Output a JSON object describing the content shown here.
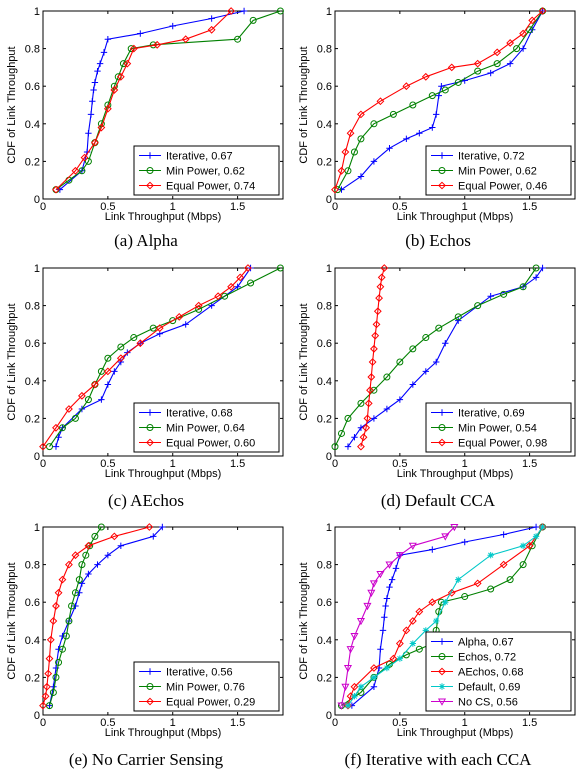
{
  "figure": {
    "captions": [
      "(a) Alpha",
      "(b) Echos",
      "(c) AEchos",
      "(d) Default CCA",
      "(e) No Carrier Sensing",
      "(f) Iterative with each CCA"
    ]
  },
  "chart_data": [
    {
      "type": "line",
      "panel": "a",
      "xlabel": "Link Throughput (Mbps)",
      "ylabel": "CDF of Link Throughput",
      "xlim": [
        0,
        1.85
      ],
      "ylim": [
        0,
        1
      ],
      "xticks": [
        0,
        0.5,
        1,
        1.5
      ],
      "xtick_labels": [
        "0",
        "0.5",
        "1",
        "1.5"
      ],
      "yticks": [
        0,
        0.2,
        0.4,
        0.6,
        0.8,
        1
      ],
      "ytick_labels": [
        "0",
        "0.2",
        "0.4",
        "0.6",
        "0.8",
        "1"
      ],
      "legend_position": "bottom-right",
      "series": [
        {
          "name": "Iterative, 0.67",
          "color": "#0000ff",
          "marker": "plus",
          "x": [
            0.13,
            0.3,
            0.34,
            0.35,
            0.37,
            0.38,
            0.39,
            0.4,
            0.42,
            0.44,
            0.47,
            0.5,
            0.75,
            1.0,
            1.3,
            1.55
          ],
          "y": [
            0.05,
            0.15,
            0.25,
            0.35,
            0.45,
            0.52,
            0.58,
            0.62,
            0.68,
            0.72,
            0.78,
            0.85,
            0.88,
            0.92,
            0.96,
            1.0
          ]
        },
        {
          "name": "Min Power, 0.62",
          "color": "#008000",
          "marker": "circle",
          "x": [
            0.1,
            0.2,
            0.3,
            0.35,
            0.4,
            0.45,
            0.5,
            0.55,
            0.58,
            0.62,
            0.68,
            0.85,
            1.5,
            1.62,
            1.83
          ],
          "y": [
            0.05,
            0.1,
            0.15,
            0.2,
            0.3,
            0.4,
            0.5,
            0.6,
            0.65,
            0.72,
            0.8,
            0.82,
            0.85,
            0.95,
            1.0
          ]
        },
        {
          "name": "Equal Power, 0.74",
          "color": "#ff0000",
          "marker": "diamond",
          "x": [
            0.1,
            0.25,
            0.32,
            0.4,
            0.45,
            0.5,
            0.55,
            0.6,
            0.65,
            0.7,
            0.88,
            1.1,
            1.3,
            1.45
          ],
          "y": [
            0.05,
            0.15,
            0.22,
            0.3,
            0.38,
            0.48,
            0.58,
            0.65,
            0.72,
            0.8,
            0.82,
            0.85,
            0.9,
            1.0
          ]
        }
      ]
    },
    {
      "type": "line",
      "panel": "b",
      "xlabel": "Link Throughput (Mbps)",
      "ylabel": "CDF of Link Throughput",
      "xlim": [
        0,
        1.85
      ],
      "ylim": [
        0,
        1
      ],
      "xticks": [
        0,
        0.5,
        1,
        1.5
      ],
      "xtick_labels": [
        "0",
        "0.5",
        "1",
        "1.5"
      ],
      "yticks": [
        0,
        0.2,
        0.4,
        0.6,
        0.8,
        1
      ],
      "ytick_labels": [
        "0",
        "0.2",
        "0.4",
        "0.6",
        "0.8",
        "1"
      ],
      "legend_position": "bottom-right",
      "series": [
        {
          "name": "Iterative, 0.72",
          "color": "#0000ff",
          "marker": "plus",
          "x": [
            0.05,
            0.2,
            0.3,
            0.42,
            0.55,
            0.65,
            0.75,
            0.78,
            0.8,
            0.82,
            1.0,
            1.2,
            1.35,
            1.45,
            1.52,
            1.6
          ],
          "y": [
            0.05,
            0.12,
            0.2,
            0.27,
            0.32,
            0.35,
            0.38,
            0.45,
            0.55,
            0.6,
            0.63,
            0.67,
            0.72,
            0.8,
            0.9,
            1.0
          ]
        },
        {
          "name": "Min Power, 0.62",
          "color": "#008000",
          "marker": "circle",
          "x": [
            0.02,
            0.1,
            0.15,
            0.2,
            0.3,
            0.45,
            0.6,
            0.75,
            0.85,
            0.95,
            1.1,
            1.25,
            1.4,
            1.5,
            1.6
          ],
          "y": [
            0.05,
            0.15,
            0.25,
            0.32,
            0.4,
            0.45,
            0.5,
            0.55,
            0.58,
            0.62,
            0.68,
            0.72,
            0.8,
            0.9,
            1.0
          ]
        },
        {
          "name": "Equal Power, 0.46",
          "color": "#ff0000",
          "marker": "diamond",
          "x": [
            0.0,
            0.05,
            0.08,
            0.12,
            0.2,
            0.35,
            0.55,
            0.7,
            0.9,
            1.1,
            1.25,
            1.35,
            1.45,
            1.52,
            1.6
          ],
          "y": [
            0.05,
            0.15,
            0.25,
            0.35,
            0.45,
            0.52,
            0.6,
            0.65,
            0.7,
            0.72,
            0.78,
            0.83,
            0.88,
            0.95,
            1.0
          ]
        }
      ]
    },
    {
      "type": "line",
      "panel": "c",
      "xlabel": "Link Throughput (Mbps)",
      "ylabel": "CDF of Link Throughput",
      "xlim": [
        0,
        1.85
      ],
      "ylim": [
        0,
        1
      ],
      "xticks": [
        0,
        0.5,
        1,
        1.5
      ],
      "xtick_labels": [
        "0",
        "0.5",
        "1",
        "1.5"
      ],
      "yticks": [
        0,
        0.2,
        0.4,
        0.6,
        0.8,
        1
      ],
      "ytick_labels": [
        "0",
        "0.2",
        "0.4",
        "0.6",
        "0.8",
        "1"
      ],
      "legend_position": "bottom-right",
      "series": [
        {
          "name": "Iterative, 0.68",
          "color": "#0000ff",
          "marker": "plus",
          "x": [
            0.1,
            0.12,
            0.15,
            0.3,
            0.45,
            0.5,
            0.55,
            0.6,
            0.65,
            0.75,
            0.9,
            1.1,
            1.3,
            1.5,
            1.6
          ],
          "y": [
            0.05,
            0.1,
            0.15,
            0.25,
            0.3,
            0.38,
            0.45,
            0.5,
            0.55,
            0.6,
            0.65,
            0.7,
            0.8,
            0.9,
            1.0
          ]
        },
        {
          "name": "Min Power, 0.64",
          "color": "#008000",
          "marker": "circle",
          "x": [
            0.05,
            0.15,
            0.25,
            0.35,
            0.4,
            0.45,
            0.5,
            0.6,
            0.7,
            0.85,
            1.0,
            1.2,
            1.4,
            1.6,
            1.83
          ],
          "y": [
            0.05,
            0.15,
            0.2,
            0.3,
            0.38,
            0.45,
            0.52,
            0.58,
            0.63,
            0.68,
            0.72,
            0.78,
            0.85,
            0.92,
            1.0
          ]
        },
        {
          "name": "Equal Power, 0.60",
          "color": "#ff0000",
          "marker": "diamond",
          "x": [
            0.0,
            0.1,
            0.2,
            0.3,
            0.4,
            0.5,
            0.6,
            0.75,
            0.9,
            1.05,
            1.2,
            1.35,
            1.45,
            1.52,
            1.58
          ],
          "y": [
            0.05,
            0.15,
            0.25,
            0.32,
            0.38,
            0.45,
            0.52,
            0.6,
            0.68,
            0.74,
            0.8,
            0.85,
            0.9,
            0.95,
            1.0
          ]
        }
      ]
    },
    {
      "type": "line",
      "panel": "d",
      "xlabel": "Link Throughput (Mbps)",
      "ylabel": "CDF of Link Throughput",
      "xlim": [
        0,
        1.85
      ],
      "ylim": [
        0,
        1
      ],
      "xticks": [
        0,
        0.5,
        1,
        1.5
      ],
      "xtick_labels": [
        "0",
        "0.5",
        "1",
        "1.5"
      ],
      "yticks": [
        0,
        0.2,
        0.4,
        0.6,
        0.8,
        1
      ],
      "ytick_labels": [
        "0",
        "0.2",
        "0.4",
        "0.6",
        "0.8",
        "1"
      ],
      "legend_position": "bottom-right",
      "series": [
        {
          "name": "Iterative, 0.69",
          "color": "#0000ff",
          "marker": "plus",
          "x": [
            0.1,
            0.15,
            0.2,
            0.3,
            0.4,
            0.5,
            0.6,
            0.7,
            0.78,
            0.85,
            0.95,
            1.2,
            1.45,
            1.55,
            1.6
          ],
          "y": [
            0.05,
            0.1,
            0.15,
            0.2,
            0.25,
            0.3,
            0.38,
            0.45,
            0.5,
            0.6,
            0.72,
            0.85,
            0.9,
            0.95,
            1.0
          ]
        },
        {
          "name": "Min Power, 0.54",
          "color": "#008000",
          "marker": "circle",
          "x": [
            0.0,
            0.05,
            0.1,
            0.2,
            0.3,
            0.4,
            0.5,
            0.6,
            0.7,
            0.8,
            0.95,
            1.1,
            1.3,
            1.45,
            1.55
          ],
          "y": [
            0.05,
            0.12,
            0.2,
            0.28,
            0.35,
            0.42,
            0.5,
            0.57,
            0.63,
            0.68,
            0.74,
            0.8,
            0.86,
            0.9,
            1.0
          ]
        },
        {
          "name": "Equal Power, 0.98",
          "color": "#ff0000",
          "marker": "diamond",
          "x": [
            0.2,
            0.22,
            0.24,
            0.25,
            0.26,
            0.27,
            0.28,
            0.29,
            0.3,
            0.31,
            0.32,
            0.33,
            0.34,
            0.35,
            0.36,
            0.38
          ],
          "y": [
            0.05,
            0.1,
            0.15,
            0.2,
            0.28,
            0.35,
            0.42,
            0.5,
            0.57,
            0.64,
            0.7,
            0.77,
            0.84,
            0.9,
            0.95,
            1.0
          ]
        }
      ]
    },
    {
      "type": "line",
      "panel": "e",
      "xlabel": "Link Throughput (Mbps)",
      "ylabel": "CDF of Link Throughput",
      "xlim": [
        0,
        1.85
      ],
      "ylim": [
        0,
        1
      ],
      "xticks": [
        0,
        0.5,
        1,
        1.5
      ],
      "xtick_labels": [
        "0",
        "0.5",
        "1",
        "1.5"
      ],
      "yticks": [
        0,
        0.2,
        0.4,
        0.6,
        0.8,
        1
      ],
      "ytick_labels": [
        "0",
        "0.2",
        "0.4",
        "0.6",
        "0.8",
        "1"
      ],
      "legend_position": "bottom-right",
      "series": [
        {
          "name": "Iterative, 0.56",
          "color": "#0000ff",
          "marker": "plus",
          "x": [
            0.05,
            0.08,
            0.1,
            0.12,
            0.15,
            0.2,
            0.25,
            0.28,
            0.3,
            0.35,
            0.42,
            0.5,
            0.6,
            0.85,
            0.92
          ],
          "y": [
            0.05,
            0.15,
            0.25,
            0.35,
            0.42,
            0.5,
            0.58,
            0.65,
            0.7,
            0.75,
            0.8,
            0.85,
            0.9,
            0.95,
            1.0
          ]
        },
        {
          "name": "Min Power, 0.76",
          "color": "#008000",
          "marker": "circle",
          "x": [
            0.05,
            0.08,
            0.1,
            0.12,
            0.15,
            0.18,
            0.2,
            0.22,
            0.25,
            0.28,
            0.3,
            0.33,
            0.36,
            0.4,
            0.45
          ],
          "y": [
            0.05,
            0.12,
            0.2,
            0.28,
            0.35,
            0.42,
            0.5,
            0.58,
            0.65,
            0.72,
            0.8,
            0.85,
            0.9,
            0.95,
            1.0
          ]
        },
        {
          "name": "Equal Power, 0.29",
          "color": "#ff0000",
          "marker": "diamond",
          "x": [
            0.0,
            0.02,
            0.03,
            0.04,
            0.05,
            0.06,
            0.08,
            0.1,
            0.12,
            0.15,
            0.2,
            0.25,
            0.35,
            0.55,
            0.82
          ],
          "y": [
            0.05,
            0.1,
            0.15,
            0.22,
            0.3,
            0.4,
            0.5,
            0.58,
            0.65,
            0.72,
            0.8,
            0.85,
            0.9,
            0.95,
            1.0
          ]
        }
      ]
    },
    {
      "type": "line",
      "panel": "f",
      "xlabel": "Link Throughput (Mbps)",
      "ylabel": "CDF of Link Throughput",
      "xlim": [
        0,
        1.85
      ],
      "ylim": [
        0,
        1
      ],
      "xticks": [
        0,
        0.5,
        1,
        1.5
      ],
      "xtick_labels": [
        "0",
        "0.5",
        "1",
        "1.5"
      ],
      "yticks": [
        0,
        0.2,
        0.4,
        0.6,
        0.8,
        1
      ],
      "ytick_labels": [
        "0",
        "0.2",
        "0.4",
        "0.6",
        "0.8",
        "1"
      ],
      "legend_position": "bottom-right",
      "series": [
        {
          "name": "Alpha, 0.67",
          "color": "#0000ff",
          "marker": "plus",
          "x": [
            0.13,
            0.3,
            0.34,
            0.35,
            0.37,
            0.38,
            0.39,
            0.4,
            0.42,
            0.44,
            0.47,
            0.5,
            0.75,
            1.0,
            1.3,
            1.55
          ],
          "y": [
            0.05,
            0.15,
            0.25,
            0.35,
            0.45,
            0.52,
            0.58,
            0.62,
            0.68,
            0.72,
            0.78,
            0.85,
            0.88,
            0.92,
            0.96,
            1.0
          ]
        },
        {
          "name": "Echos, 0.72",
          "color": "#008000",
          "marker": "circle",
          "x": [
            0.05,
            0.2,
            0.3,
            0.42,
            0.55,
            0.65,
            0.75,
            0.78,
            0.8,
            0.82,
            1.0,
            1.2,
            1.35,
            1.45,
            1.52,
            1.6
          ],
          "y": [
            0.05,
            0.12,
            0.2,
            0.27,
            0.32,
            0.35,
            0.38,
            0.45,
            0.55,
            0.6,
            0.63,
            0.67,
            0.72,
            0.8,
            0.9,
            1.0
          ]
        },
        {
          "name": "AEchos, 0.68",
          "color": "#ff0000",
          "marker": "diamond",
          "x": [
            0.1,
            0.12,
            0.15,
            0.3,
            0.45,
            0.5,
            0.55,
            0.6,
            0.65,
            0.75,
            0.9,
            1.1,
            1.3,
            1.5,
            1.6
          ],
          "y": [
            0.05,
            0.1,
            0.15,
            0.25,
            0.3,
            0.38,
            0.45,
            0.5,
            0.55,
            0.6,
            0.65,
            0.7,
            0.8,
            0.9,
            1.0
          ]
        },
        {
          "name": "Default, 0.69",
          "color": "#00c8c8",
          "marker": "asterisk",
          "x": [
            0.1,
            0.15,
            0.2,
            0.3,
            0.4,
            0.5,
            0.6,
            0.7,
            0.78,
            0.85,
            0.95,
            1.2,
            1.45,
            1.55,
            1.6
          ],
          "y": [
            0.05,
            0.1,
            0.15,
            0.2,
            0.25,
            0.3,
            0.38,
            0.45,
            0.5,
            0.6,
            0.72,
            0.85,
            0.9,
            0.95,
            1.0
          ]
        },
        {
          "name": "No CS, 0.56",
          "color": "#cc00cc",
          "marker": "triangle-down",
          "x": [
            0.05,
            0.08,
            0.1,
            0.12,
            0.15,
            0.2,
            0.25,
            0.28,
            0.3,
            0.35,
            0.42,
            0.5,
            0.6,
            0.85,
            0.92
          ],
          "y": [
            0.05,
            0.15,
            0.25,
            0.35,
            0.42,
            0.5,
            0.58,
            0.65,
            0.7,
            0.75,
            0.8,
            0.85,
            0.9,
            0.95,
            1.0
          ]
        }
      ]
    }
  ]
}
